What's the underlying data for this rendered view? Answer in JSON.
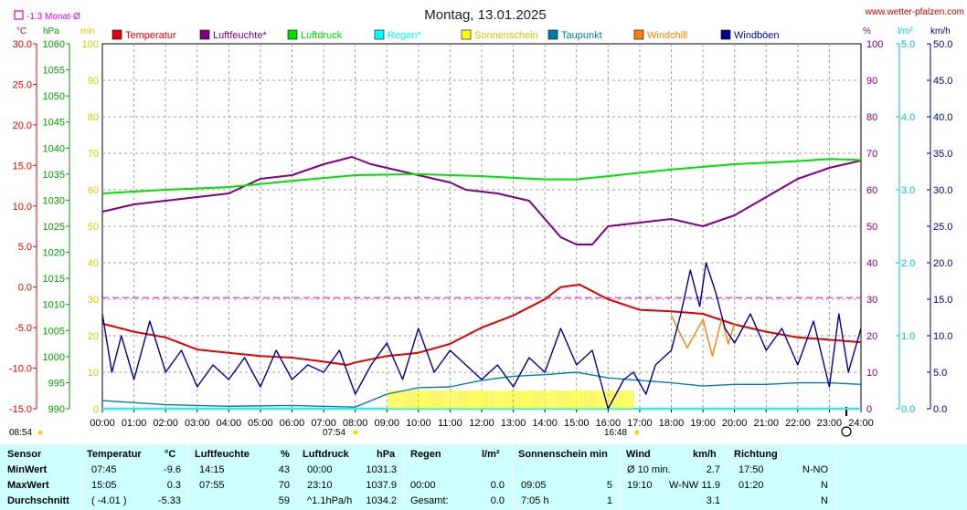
{
  "header": {
    "title": "Montag, 13.01.2025",
    "site": "www.wetter-pfalzen.com",
    "month_avg_label": "-1.3 Monat-Ø"
  },
  "colors": {
    "temperature": "#e00000",
    "humidity": "#800080",
    "pressure": "#00e000",
    "rain": "#00ffff",
    "sunshine": "#ffff00",
    "dewpoint": "#0080a0",
    "windchill": "#ff8000",
    "gust": "#000090",
    "left_axis": "#e00000",
    "hpa_axis": "#00a000",
    "min_axis": "#d0d000",
    "pct_axis": "#800080",
    "rain_axis": "#00c0d0",
    "wind_axis": "#000080"
  },
  "axes": {
    "unit_celsius": "°C",
    "unit_hpa": "hPa",
    "unit_min": "min",
    "unit_pct": "%",
    "unit_rain": "l/m²",
    "unit_wind": "km/h",
    "celsius_ticks": [
      "30.0",
      "25.0",
      "20.0",
      "15.0",
      "10.0",
      "5.0",
      "0.0",
      "-5.0",
      "-10.0",
      "-15.0"
    ],
    "hpa_ticks": [
      "1060",
      "1055",
      "1050",
      "1045",
      "1040",
      "1035",
      "1030",
      "1025",
      "1020",
      "1015",
      "1010",
      "1005",
      "1000",
      "995",
      "990"
    ],
    "min_ticks": [
      "100",
      "90",
      "80",
      "70",
      "60",
      "50",
      "40",
      "30",
      "20",
      "10",
      "0"
    ],
    "pct_ticks": [
      "100",
      "90",
      "80",
      "70",
      "60",
      "50",
      "40",
      "30",
      "20",
      "10",
      "0"
    ],
    "rain_ticks": [
      "5.0",
      "4.0",
      "3.0",
      "2.0",
      "1.0",
      "0.0"
    ],
    "wind_ticks": [
      "50.0",
      "45.0",
      "40.0",
      "35.0",
      "30.0",
      "25.0",
      "20.0",
      "15.0",
      "10.0",
      "5.0",
      "0.0"
    ],
    "time_ticks": [
      "00:00",
      "01:00",
      "02:00",
      "03:00",
      "04:00",
      "05:00",
      "06:00",
      "07:00",
      "08:00",
      "09:00",
      "10:00",
      "11:00",
      "12:00",
      "13:00",
      "14:00",
      "15:00",
      "16:00",
      "17:00",
      "18:00",
      "19:00",
      "20:00",
      "21:00",
      "22:00",
      "23:00",
      "24:00"
    ],
    "sunrise": "07:54",
    "sunset": "16:48",
    "moonrise": "08:54"
  },
  "legend": [
    "Temperatur",
    "Luftfeuchte*",
    "Luftdruck",
    "Regen*",
    "Sonnenschein",
    "Taupunkt",
    "Windchill",
    "Windböen"
  ],
  "chart_data": {
    "type": "line",
    "x_unit": "hour",
    "month_avg_temperature": -1.3,
    "series": [
      {
        "name": "Temperatur",
        "unit": "°C",
        "x": [
          0,
          1,
          2,
          3,
          4,
          5,
          6,
          7,
          7.75,
          8,
          9,
          10,
          11,
          12,
          13,
          14,
          14.5,
          15.1,
          16,
          17,
          18,
          19,
          20,
          21,
          22,
          23,
          24
        ],
        "y": [
          -4.5,
          -5.5,
          -6.2,
          -7.7,
          -8.1,
          -8.5,
          -8.7,
          -9.2,
          -9.6,
          -9.3,
          -8.5,
          -8.1,
          -7.0,
          -5.0,
          -3.5,
          -1.5,
          0.0,
          0.3,
          -1.5,
          -2.8,
          -3.0,
          -3.3,
          -4.6,
          -5.5,
          -6.2,
          -6.5,
          -6.8
        ]
      },
      {
        "name": "Luftfeuchte*",
        "unit": "%",
        "x": [
          0,
          1,
          2,
          3,
          4,
          5,
          6,
          7,
          7.9,
          8.5,
          9.5,
          10.5,
          11,
          11.5,
          12.5,
          13.5,
          14,
          14.5,
          15,
          15.5,
          16,
          17,
          18,
          19,
          20,
          21,
          22,
          23,
          24
        ],
        "y": [
          54,
          56,
          57,
          58,
          59,
          63,
          64,
          67,
          69,
          67,
          65,
          63,
          62,
          60,
          59,
          57,
          52,
          47,
          45,
          45,
          50,
          51,
          52,
          50,
          53,
          58,
          63,
          66,
          68
        ]
      },
      {
        "name": "Luftdruck",
        "unit": "hPa",
        "x": [
          0,
          2,
          4,
          6,
          8,
          10,
          12,
          14,
          15,
          16,
          18,
          20,
          22,
          23,
          24
        ],
        "y": [
          1031.3,
          1032,
          1032.5,
          1033.7,
          1034.8,
          1035.0,
          1034.6,
          1034.0,
          1034.0,
          1034.6,
          1035.9,
          1036.9,
          1037.5,
          1037.9,
          1037.7
        ]
      },
      {
        "name": "Regen*",
        "unit": "l/m²",
        "x": [
          0,
          24
        ],
        "y": [
          0.0,
          0.0
        ]
      },
      {
        "name": "Sonnenschein",
        "unit": "min",
        "x": [
          9.05,
          16.8
        ],
        "y": [
          5,
          5
        ]
      },
      {
        "name": "Taupunkt",
        "unit": "°C",
        "x": [
          0,
          2,
          4,
          6,
          8,
          9,
          10,
          11,
          12,
          13,
          14,
          15,
          16,
          17,
          18,
          19,
          20,
          21,
          22,
          23,
          24
        ],
        "y": [
          -14.0,
          -14.5,
          -14.7,
          -14.6,
          -14.8,
          -13.2,
          -12.4,
          -12.3,
          -11.5,
          -11.0,
          -10.8,
          -10.5,
          -11.2,
          -11.5,
          -11.8,
          -12.2,
          -12.0,
          -12.0,
          -11.8,
          -11.8,
          -12.0
        ]
      },
      {
        "name": "Windchill",
        "unit": "°C",
        "x": [
          18,
          18.5,
          19,
          19.3,
          19.6,
          19.8,
          20
        ],
        "y": [
          -3.5,
          -7.5,
          -4,
          -8.5,
          -3.8,
          -7,
          -4.5
        ]
      },
      {
        "name": "Windböen",
        "unit": "km/h",
        "x": [
          0,
          0.3,
          0.6,
          1,
          1.5,
          2,
          2.5,
          3,
          3.5,
          4,
          4.5,
          5,
          5.5,
          6,
          6.5,
          7,
          7.5,
          8,
          8.5,
          9,
          9.5,
          10,
          10.5,
          11,
          11.5,
          12,
          12.5,
          13,
          13.5,
          14,
          14.5,
          15,
          15.5,
          16,
          16.5,
          16.8,
          17.2,
          17.5,
          18,
          18.3,
          18.6,
          18.9,
          19.1,
          19.4,
          19.7,
          20,
          20.5,
          21,
          21.5,
          22,
          22.5,
          23,
          23.3,
          23.6,
          24
        ],
        "y": [
          13,
          5,
          10,
          4,
          12,
          5,
          8,
          3,
          6,
          4,
          7,
          3,
          8,
          4,
          6,
          5,
          8,
          2,
          6,
          9,
          4,
          11,
          5,
          8,
          6,
          4,
          6,
          3,
          7,
          5,
          11,
          6,
          8,
          0,
          4,
          5,
          2,
          6,
          8,
          13,
          19,
          14,
          20,
          16,
          11,
          9,
          13,
          8,
          11,
          6,
          12,
          3,
          13,
          5,
          11
        ]
      }
    ]
  },
  "stats": {
    "headers": {
      "sensor": "Sensor",
      "temperatur": "Temperatur",
      "temp_unit": "°C",
      "feuchte": "Luftfeuchte",
      "feuchte_unit": "%",
      "druck": "Luftdruck",
      "druck_unit": "hPa",
      "regen": "Regen",
      "regen_unit": "l/m²",
      "sonne": "Sonnenschein min",
      "wind": "Wind",
      "wind_unit": "km/h",
      "richtung": "Richtung"
    },
    "rows": [
      {
        "label": "MinWert",
        "t_time": "07:45",
        "t_val": "-9.6",
        "h_time": "14:15",
        "h_val": "43",
        "p_time": "00:00",
        "p_val": "1031.3",
        "r_time": "",
        "r_val": "",
        "s_time": "",
        "s_val": "",
        "w_time": "Ø 10 min.",
        "w_dir": "",
        "w_val": "2.7",
        "d_time": "17:50",
        "d_val": "N-NO"
      },
      {
        "label": "MaxWert",
        "t_time": "15:05",
        "t_val": "0.3",
        "h_time": "07:55",
        "h_val": "70",
        "p_time": "23:10",
        "p_val": "1037.9",
        "r_time": "00:00",
        "r_val": "0.0",
        "s_time": "09:05",
        "s_val": "5",
        "w_time": "19:10",
        "w_dir": "W-NW",
        "w_val": "11.9",
        "d_time": "01:20",
        "d_val": "N"
      },
      {
        "label": "Durchschnitt",
        "t_time": "( -4.01 )",
        "t_val": "-5.33",
        "h_time": "",
        "h_val": "59",
        "p_time": "^1.1hPa/h",
        "p_val": "1034.2",
        "r_time": "Gesamt:",
        "r_val": "0.0",
        "s_time": "7:05 h",
        "s_val": "1",
        "w_time": "",
        "w_dir": "",
        "w_val": "3.1",
        "d_time": "",
        "d_val": "N"
      }
    ]
  }
}
